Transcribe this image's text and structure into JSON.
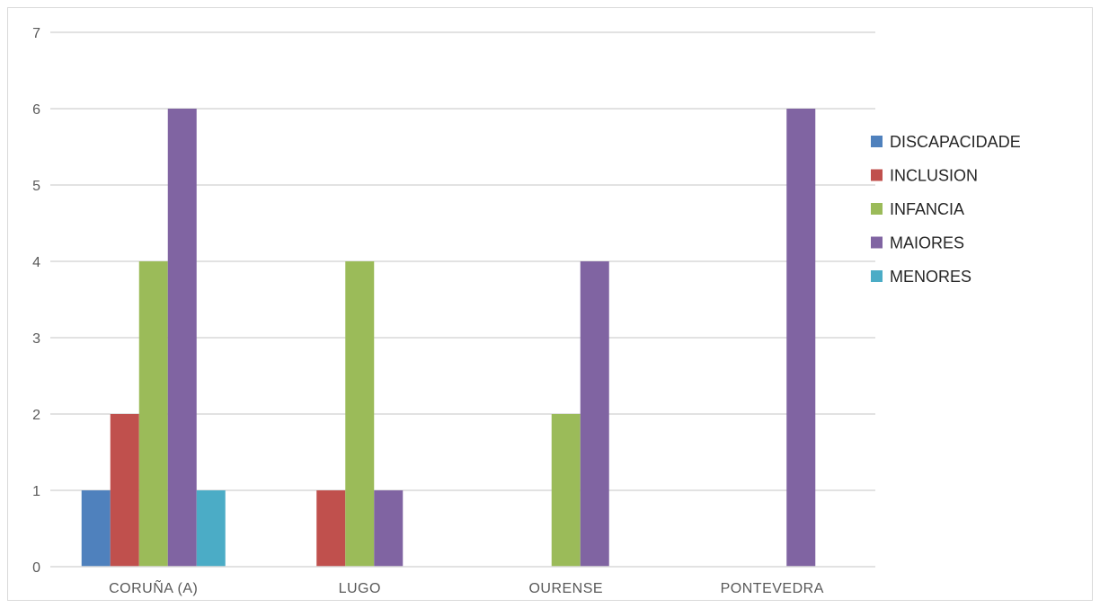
{
  "chart_data": {
    "type": "bar",
    "categories": [
      "CORUÑA (A)",
      "LUGO",
      "OURENSE",
      "PONTEVEDRA"
    ],
    "series": [
      {
        "name": "DISCAPACIDADE",
        "color": "#4f81bd",
        "values": [
          1,
          0,
          0,
          0
        ]
      },
      {
        "name": "INCLUSION",
        "color": "#c0504d",
        "values": [
          2,
          1,
          0,
          0
        ]
      },
      {
        "name": "INFANCIA",
        "color": "#9bbb59",
        "values": [
          4,
          4,
          2,
          0
        ]
      },
      {
        "name": "MAIORES",
        "color": "#8064a2",
        "values": [
          6,
          1,
          4,
          6
        ]
      },
      {
        "name": "MENORES",
        "color": "#4bacc6",
        "values": [
          1,
          0,
          0,
          0
        ]
      }
    ],
    "ylim": [
      0,
      7
    ],
    "yticks": [
      0,
      1,
      2,
      3,
      4,
      5,
      6,
      7
    ],
    "grid": true,
    "legend_position": "right"
  }
}
